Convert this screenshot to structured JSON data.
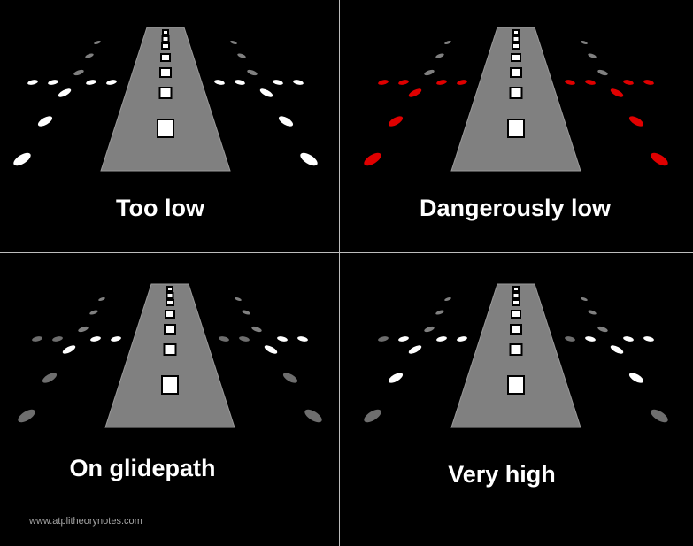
{
  "panels": [
    {
      "caption": "Too low",
      "light_colors": [
        "#ffffff",
        "#ffffff",
        "#ffffff",
        "#ffffff"
      ]
    },
    {
      "caption": "Dangerously low",
      "light_colors": [
        "#e00000",
        "#e00000",
        "#e00000",
        "#e00000"
      ]
    },
    {
      "caption": "On glidepath",
      "light_colors": [
        "#ffffff",
        "#ffffff",
        "#6e6e6e",
        "#6e6e6e"
      ]
    },
    {
      "caption": "Very high",
      "light_colors": [
        "#ffffff",
        "#ffffff",
        "#ffffff",
        "#6e6e6e"
      ]
    }
  ],
  "watermark": "www.atplitheorynotes.com",
  "colors": {
    "runway": "#808080",
    "runway_edge": "#9a9a9a",
    "far_light": "#808080",
    "background": "#000000",
    "divider": "#bdbdbd"
  }
}
